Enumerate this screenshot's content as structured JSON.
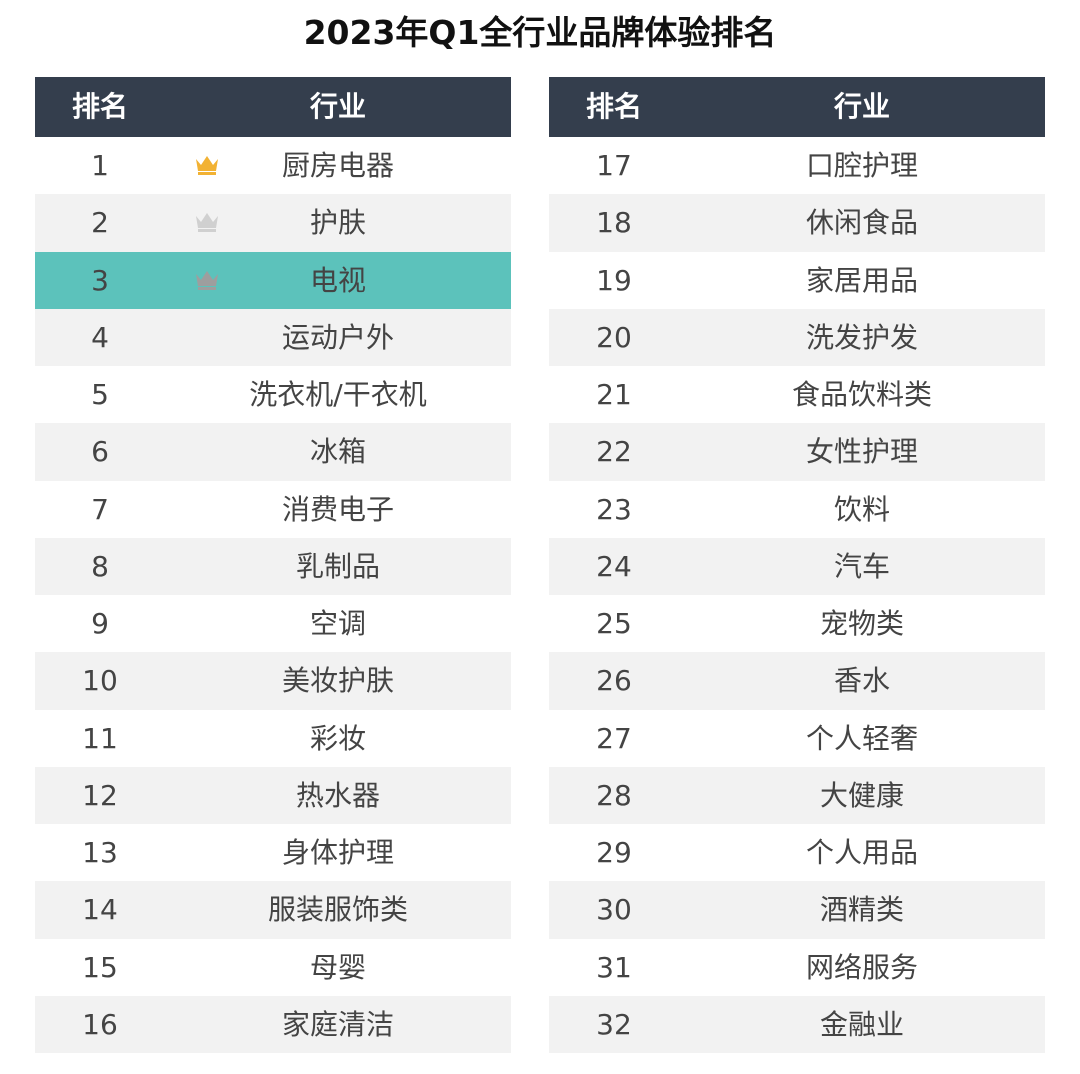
{
  "title": "2023年Q1全行业品牌体验排名",
  "colors": {
    "header_bg": "#343e4d",
    "header_text": "#ffffff",
    "row_alt_bg": "#f2f2f2",
    "highlight_bg": "#5cc2bb",
    "text": "#444444",
    "crown_gold": "#f2b233",
    "crown_silver": "#d0d0d0",
    "crown_bronze": "#9e9e9e"
  },
  "chart_data": {
    "type": "table",
    "columns": [
      "排名",
      "行业"
    ],
    "highlight_rank": 3,
    "crowns": [
      {
        "rank": 1,
        "icon": "crown-gold-icon",
        "color": "#f2b233"
      },
      {
        "rank": 2,
        "icon": "crown-silver-icon",
        "color": "#d0d0d0"
      },
      {
        "rank": 3,
        "icon": "crown-bronze-icon",
        "color": "#9e9e9e"
      }
    ],
    "rows": [
      {
        "rank": "1",
        "industry": "厨房电器"
      },
      {
        "rank": "2",
        "industry": "护肤"
      },
      {
        "rank": "3",
        "industry": "电视"
      },
      {
        "rank": "4",
        "industry": "运动户外"
      },
      {
        "rank": "5",
        "industry": "洗衣机/干衣机"
      },
      {
        "rank": "6",
        "industry": "冰箱"
      },
      {
        "rank": "7",
        "industry": "消费电子"
      },
      {
        "rank": "8",
        "industry": "乳制品"
      },
      {
        "rank": "9",
        "industry": "空调"
      },
      {
        "rank": "10",
        "industry": "美妆护肤"
      },
      {
        "rank": "11",
        "industry": "彩妆"
      },
      {
        "rank": "12",
        "industry": "热水器"
      },
      {
        "rank": "13",
        "industry": "身体护理"
      },
      {
        "rank": "14",
        "industry": "服装服饰类"
      },
      {
        "rank": "15",
        "industry": "母婴"
      },
      {
        "rank": "16",
        "industry": "家庭清洁"
      },
      {
        "rank": "17",
        "industry": "口腔护理"
      },
      {
        "rank": "18",
        "industry": "休闲食品"
      },
      {
        "rank": "19",
        "industry": "家居用品"
      },
      {
        "rank": "20",
        "industry": "洗发护发"
      },
      {
        "rank": "21",
        "industry": "食品饮料类"
      },
      {
        "rank": "22",
        "industry": "女性护理"
      },
      {
        "rank": "23",
        "industry": "饮料"
      },
      {
        "rank": "24",
        "industry": "汽车"
      },
      {
        "rank": "25",
        "industry": "宠物类"
      },
      {
        "rank": "26",
        "industry": "香水"
      },
      {
        "rank": "27",
        "industry": "个人轻奢"
      },
      {
        "rank": "28",
        "industry": "大健康"
      },
      {
        "rank": "29",
        "industry": "个人用品"
      },
      {
        "rank": "30",
        "industry": "酒精类"
      },
      {
        "rank": "31",
        "industry": "网络服务"
      },
      {
        "rank": "32",
        "industry": "金融业"
      }
    ]
  }
}
